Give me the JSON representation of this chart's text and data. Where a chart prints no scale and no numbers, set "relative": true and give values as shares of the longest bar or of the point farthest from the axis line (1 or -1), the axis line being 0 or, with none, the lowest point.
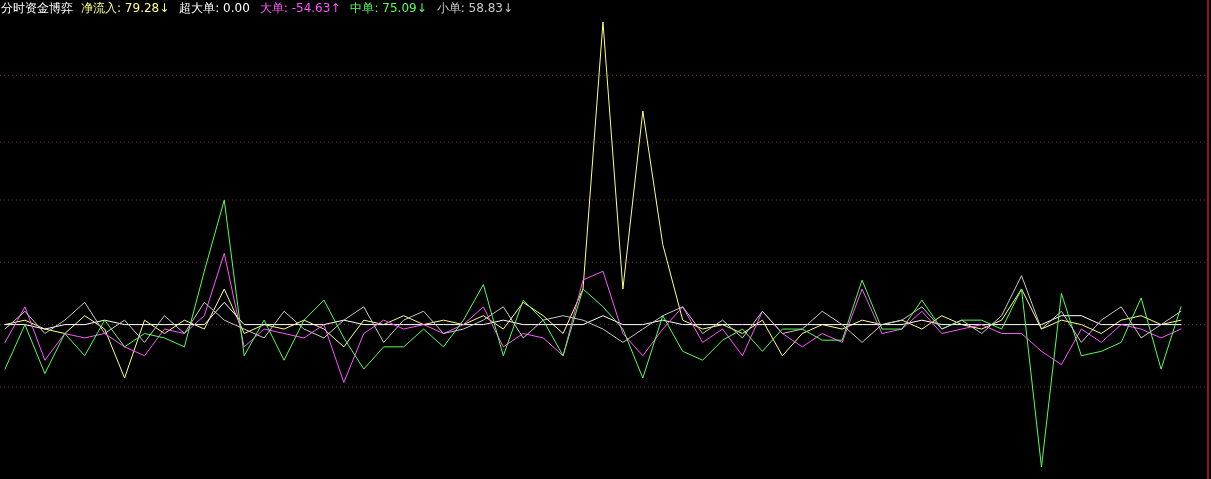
{
  "chart_data": {
    "type": "line",
    "title": "分时资金博弈",
    "relative": true,
    "ref_lines": [
      {
        "axis": "y",
        "value": 0.88,
        "color": "#7a2a2a",
        "line_style": "dotted"
      },
      {
        "axis": "y",
        "value": 0.73,
        "color": "#7a2a2a",
        "line_style": "dotted"
      },
      {
        "axis": "y",
        "value": 0.6,
        "color": "#7a2a2a",
        "line_style": "dotted"
      },
      {
        "axis": "y",
        "value": 0.46,
        "color": "#7a2a2a",
        "line_style": "dotted"
      },
      {
        "axis": "y",
        "value": 0.32,
        "color": "#7a2a2a",
        "line_style": "dotted"
      },
      {
        "axis": "y",
        "value": 0.18,
        "color": "#7a2a2a",
        "line_style": "dotted"
      }
    ],
    "legend": "top left",
    "line_style": "solid",
    "marker": "none",
    "categories": [
      null,
      null,
      null,
      null,
      null,
      null,
      null,
      null,
      null,
      null,
      null,
      null,
      null,
      null,
      null,
      null,
      null,
      null,
      null,
      null,
      null,
      null,
      null,
      null,
      null,
      null,
      null,
      null,
      null,
      null,
      null,
      null,
      null,
      null,
      null,
      null,
      null,
      null,
      null,
      null,
      null,
      null,
      null,
      null,
      null,
      null,
      null,
      null,
      null,
      null,
      null,
      null,
      null,
      null,
      null,
      null,
      null,
      null,
      null,
      null
    ],
    "series": [
      {
        "name": "净流入: 79.28↓",
        "color": "#ffff80",
        "values": [
          0.32,
          0.33,
          0.31,
          0.3,
          0.34,
          0.31,
          0.2,
          0.33,
          0.3,
          0.33,
          0.31,
          0.4,
          0.3,
          0.32,
          0.31,
          0.33,
          0.31,
          0.27,
          0.33,
          0.32,
          0.34,
          0.32,
          0.33,
          0.32,
          0.34,
          0.31,
          0.37,
          0.34,
          0.3,
          0.4,
          1.0,
          0.4,
          0.8,
          0.5,
          0.33,
          0.31,
          0.32,
          0.3,
          0.33,
          0.25,
          0.3,
          0.32,
          0.31,
          0.33,
          0.32,
          0.33,
          0.31,
          0.34,
          0.32,
          0.31,
          0.33,
          0.4,
          0.31,
          0.33,
          0.32,
          0.3,
          0.33,
          0.34,
          0.32,
          0.33
        ]
      },
      {
        "name": "超大单: 0.00",
        "color": "#ffffff",
        "values": [
          0.32,
          0.32,
          0.31,
          0.32,
          0.32,
          0.33,
          0.32,
          0.32,
          0.32,
          0.32,
          0.32,
          0.37,
          0.32,
          0.32,
          0.32,
          0.32,
          0.32,
          0.33,
          0.32,
          0.32,
          0.32,
          0.32,
          0.32,
          0.32,
          0.32,
          0.33,
          0.32,
          0.32,
          0.32,
          0.32,
          0.34,
          0.32,
          0.32,
          0.33,
          0.32,
          0.32,
          0.32,
          0.32,
          0.32,
          0.32,
          0.32,
          0.32,
          0.32,
          0.32,
          0.32,
          0.32,
          0.33,
          0.32,
          0.32,
          0.32,
          0.32,
          0.32,
          0.32,
          0.34,
          0.34,
          0.32,
          0.32,
          0.32,
          0.32,
          0.32
        ]
      },
      {
        "name": "大单: -54.63↑",
        "color": "#ff55ff",
        "values": [
          0.28,
          0.36,
          0.24,
          0.3,
          0.29,
          0.3,
          0.27,
          0.25,
          0.31,
          0.3,
          0.34,
          0.48,
          0.27,
          0.31,
          0.3,
          0.29,
          0.32,
          0.19,
          0.3,
          0.33,
          0.31,
          0.32,
          0.3,
          0.32,
          0.36,
          0.27,
          0.3,
          0.29,
          0.25,
          0.42,
          0.44,
          0.3,
          0.25,
          0.31,
          0.36,
          0.28,
          0.31,
          0.25,
          0.35,
          0.3,
          0.27,
          0.3,
          0.28,
          0.4,
          0.3,
          0.31,
          0.35,
          0.3,
          0.31,
          0.32,
          0.3,
          0.3,
          0.26,
          0.23,
          0.31,
          0.28,
          0.32,
          0.31,
          0.29,
          0.31
        ]
      },
      {
        "name": "中单: 75.09↓",
        "color": "#55ff55",
        "values": [
          0.22,
          0.32,
          0.21,
          0.3,
          0.25,
          0.33,
          0.27,
          0.3,
          0.29,
          0.27,
          0.44,
          0.6,
          0.25,
          0.33,
          0.24,
          0.33,
          0.375,
          0.29,
          0.22,
          0.27,
          0.27,
          0.31,
          0.27,
          0.33,
          0.41,
          0.25,
          0.375,
          0.33,
          0.25,
          0.4,
          0.36,
          0.31,
          0.2,
          0.34,
          0.26,
          0.24,
          0.285,
          0.31,
          0.26,
          0.31,
          0.31,
          0.285,
          0.285,
          0.42,
          0.31,
          0.31,
          0.375,
          0.31,
          0.33,
          0.33,
          0.31,
          0.4,
          0.0,
          0.39,
          0.25,
          0.26,
          0.28,
          0.38,
          0.22,
          0.36
        ]
      },
      {
        "name": "小单: 58.83↓",
        "color": "#c8c8c8",
        "values": [
          0.31,
          0.35,
          0.3,
          0.33,
          0.37,
          0.3,
          0.33,
          0.28,
          0.34,
          0.3,
          0.37,
          0.33,
          0.31,
          0.29,
          0.35,
          0.31,
          0.29,
          0.33,
          0.36,
          0.28,
          0.33,
          0.35,
          0.3,
          0.31,
          0.33,
          0.36,
          0.29,
          0.33,
          0.34,
          0.33,
          0.31,
          0.28,
          0.31,
          0.34,
          0.36,
          0.3,
          0.33,
          0.29,
          0.35,
          0.3,
          0.31,
          0.35,
          0.32,
          0.28,
          0.32,
          0.33,
          0.36,
          0.31,
          0.33,
          0.3,
          0.34,
          0.43,
          0.31,
          0.35,
          0.28,
          0.33,
          0.36,
          0.29,
          0.32,
          0.35
        ]
      }
    ]
  }
}
